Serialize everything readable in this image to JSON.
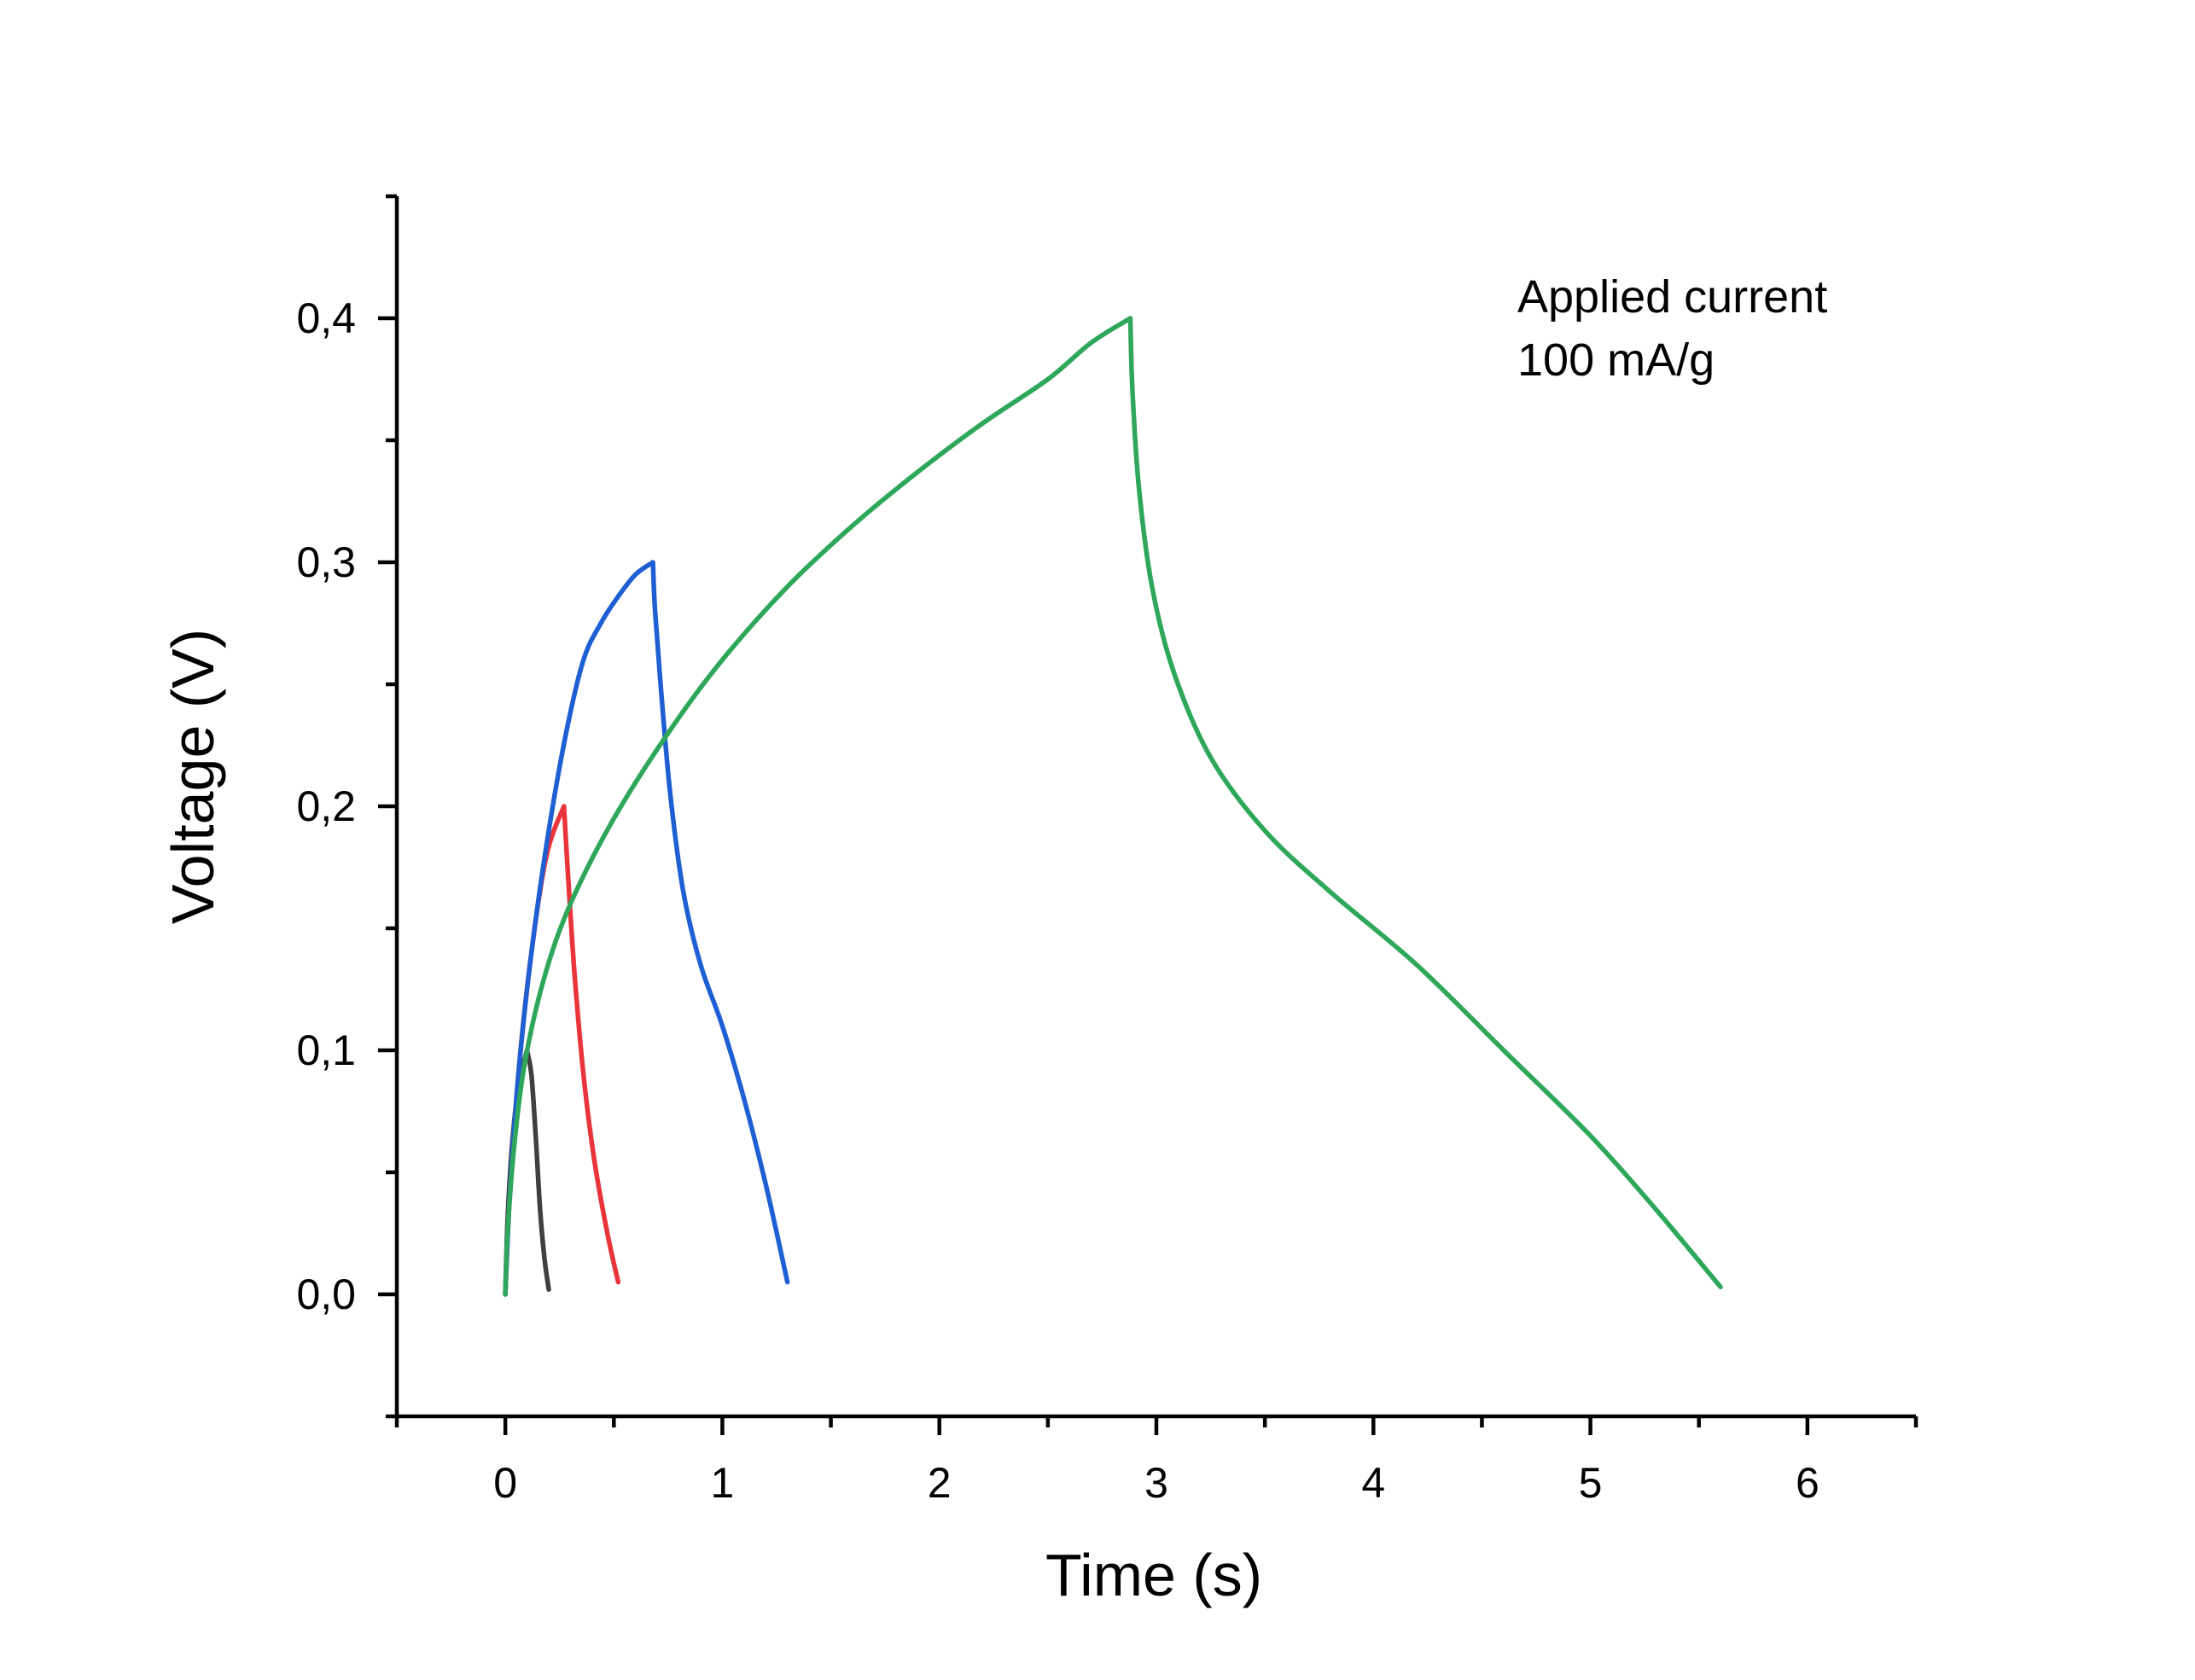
{
  "chart_data": {
    "type": "line",
    "xlabel": "Time (s)",
    "ylabel": "Voltage (V)",
    "xlim": [
      -0.5,
      6.5
    ],
    "ylim": [
      -0.05,
      0.45
    ],
    "x_ticks": [
      0,
      1,
      2,
      3,
      4,
      5,
      6
    ],
    "x_tick_labels": [
      "0",
      "1",
      "2",
      "3",
      "4",
      "5",
      "6"
    ],
    "x_minor_ticks": [
      -0.5,
      0.5,
      1.5,
      2.5,
      3.5,
      4.5,
      5.5,
      6.5
    ],
    "y_ticks": [
      0.0,
      0.1,
      0.2,
      0.3,
      0.4
    ],
    "y_tick_labels": [
      "0,0",
      "0,1",
      "0,2",
      "0,3",
      "0,4"
    ],
    "y_minor_ticks": [
      -0.05,
      0.05,
      0.15,
      0.25,
      0.35,
      0.45
    ],
    "grid": false,
    "annotation": [
      "Applied current",
      "100 mA/g"
    ],
    "series": [
      {
        "color": "#3f3f3f",
        "points": [
          [
            0.0,
            0.0
          ],
          [
            0.01,
            0.03
          ],
          [
            0.03,
            0.06
          ],
          [
            0.06,
            0.085
          ],
          [
            0.1,
            0.1
          ],
          [
            0.12,
            0.09
          ],
          [
            0.14,
            0.065
          ],
          [
            0.16,
            0.035
          ],
          [
            0.18,
            0.015
          ],
          [
            0.2,
            0.002
          ]
        ]
      },
      {
        "color": "#e8343a",
        "points": [
          [
            0.0,
            0.0
          ],
          [
            0.02,
            0.04
          ],
          [
            0.06,
            0.09
          ],
          [
            0.12,
            0.14
          ],
          [
            0.19,
            0.18
          ],
          [
            0.27,
            0.2
          ],
          [
            0.29,
            0.17
          ],
          [
            0.32,
            0.13
          ],
          [
            0.36,
            0.09
          ],
          [
            0.41,
            0.055
          ],
          [
            0.47,
            0.025
          ],
          [
            0.52,
            0.005
          ]
        ]
      },
      {
        "color": "#1f5fd4",
        "points": [
          [
            0.0,
            0.0
          ],
          [
            0.02,
            0.04
          ],
          [
            0.06,
            0.09
          ],
          [
            0.12,
            0.14
          ],
          [
            0.2,
            0.19
          ],
          [
            0.28,
            0.23
          ],
          [
            0.36,
            0.26
          ],
          [
            0.44,
            0.275
          ],
          [
            0.52,
            0.286
          ],
          [
            0.6,
            0.295
          ],
          [
            0.68,
            0.3
          ],
          [
            0.69,
            0.28
          ],
          [
            0.72,
            0.245
          ],
          [
            0.76,
            0.205
          ],
          [
            0.82,
            0.165
          ],
          [
            0.9,
            0.135
          ],
          [
            1.0,
            0.11
          ],
          [
            1.1,
            0.08
          ],
          [
            1.2,
            0.045
          ],
          [
            1.3,
            0.005
          ]
        ]
      },
      {
        "color": "#2ea75a",
        "points": [
          [
            0.0,
            0.0
          ],
          [
            0.01,
            0.025
          ],
          [
            0.04,
            0.06
          ],
          [
            0.09,
            0.095
          ],
          [
            0.18,
            0.13
          ],
          [
            0.3,
            0.16
          ],
          [
            0.5,
            0.195
          ],
          [
            0.75,
            0.23
          ],
          [
            1.0,
            0.26
          ],
          [
            1.3,
            0.29
          ],
          [
            1.6,
            0.315
          ],
          [
            1.9,
            0.337
          ],
          [
            2.2,
            0.357
          ],
          [
            2.5,
            0.375
          ],
          [
            2.7,
            0.39
          ],
          [
            2.88,
            0.4
          ],
          [
            2.89,
            0.37
          ],
          [
            2.92,
            0.33
          ],
          [
            2.98,
            0.29
          ],
          [
            3.08,
            0.255
          ],
          [
            3.25,
            0.22
          ],
          [
            3.5,
            0.19
          ],
          [
            3.8,
            0.165
          ],
          [
            4.2,
            0.135
          ],
          [
            4.6,
            0.1
          ],
          [
            5.0,
            0.065
          ],
          [
            5.3,
            0.035
          ],
          [
            5.6,
            0.003
          ]
        ]
      }
    ]
  }
}
